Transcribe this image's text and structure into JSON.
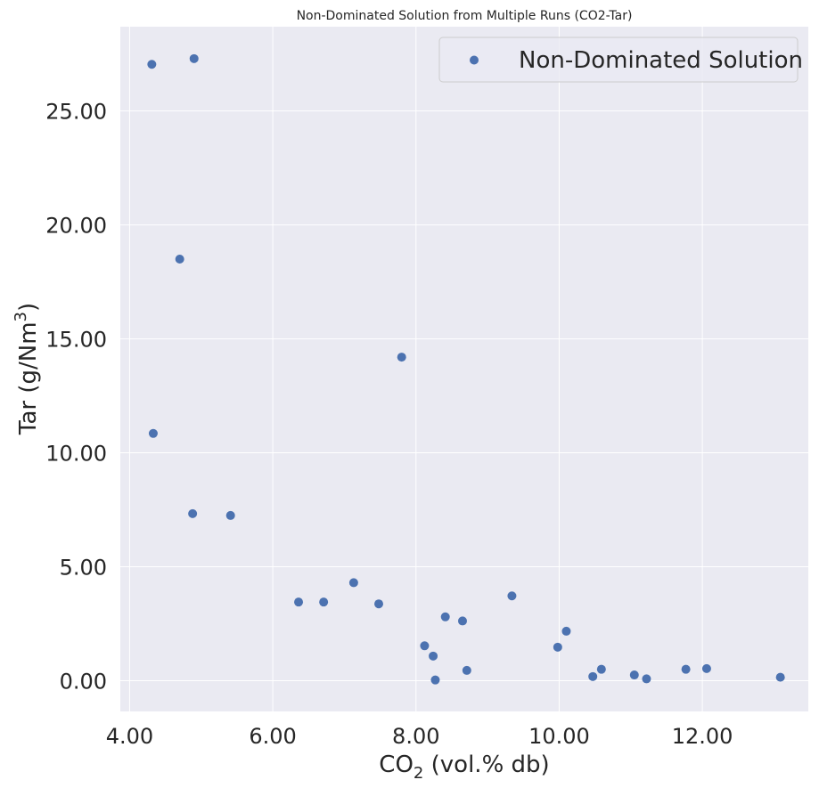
{
  "chart_data": {
    "type": "scatter",
    "title": "Non-Dominated Solution from Multiple Runs (CO2-Tar)",
    "xlabel": {
      "prefix": "CO",
      "sub": "2",
      "suffix": " (vol.% db)"
    },
    "ylabel": {
      "prefix": "Tar (g/Nm",
      "sup": "3",
      "suffix": ")"
    },
    "xlim": [
      3.87,
      13.48
    ],
    "ylim": [
      -1.35,
      28.7
    ],
    "xticks": [
      4,
      6,
      8,
      10,
      12
    ],
    "xtick_labels": [
      "4.00",
      "6.00",
      "8.00",
      "10.00",
      "12.00"
    ],
    "yticks": [
      0,
      5,
      10,
      15,
      20,
      25
    ],
    "ytick_labels": [
      "0.00",
      "5.00",
      "10.00",
      "15.00",
      "20.00",
      "25.00"
    ],
    "grid": true,
    "legend": {
      "placement": "top-right",
      "entries": [
        "Non-Dominated Solution"
      ]
    },
    "series": [
      {
        "name": "Non-Dominated Solution",
        "color": "#4c72b0",
        "points": [
          [
            4.31,
            27.05
          ],
          [
            4.9,
            27.3
          ],
          [
            4.7,
            18.5
          ],
          [
            4.33,
            10.85
          ],
          [
            4.88,
            7.33
          ],
          [
            5.41,
            7.25
          ],
          [
            6.36,
            3.45
          ],
          [
            6.71,
            3.45
          ],
          [
            7.13,
            4.3
          ],
          [
            7.48,
            3.37
          ],
          [
            7.8,
            14.2
          ],
          [
            8.12,
            1.53
          ],
          [
            8.24,
            1.08
          ],
          [
            8.41,
            2.8
          ],
          [
            8.65,
            2.62
          ],
          [
            8.71,
            0.45
          ],
          [
            8.27,
            0.03
          ],
          [
            9.34,
            3.72
          ],
          [
            9.98,
            1.47
          ],
          [
            10.1,
            2.17
          ],
          [
            10.47,
            0.18
          ],
          [
            10.59,
            0.5
          ],
          [
            11.05,
            0.25
          ],
          [
            11.22,
            0.08
          ],
          [
            11.77,
            0.5
          ],
          [
            12.06,
            0.53
          ],
          [
            13.09,
            0.15
          ]
        ]
      }
    ]
  },
  "colors": {
    "plot_background": "#eaeaf2",
    "grid": "#ffffff",
    "marker": "#4c72b0"
  }
}
